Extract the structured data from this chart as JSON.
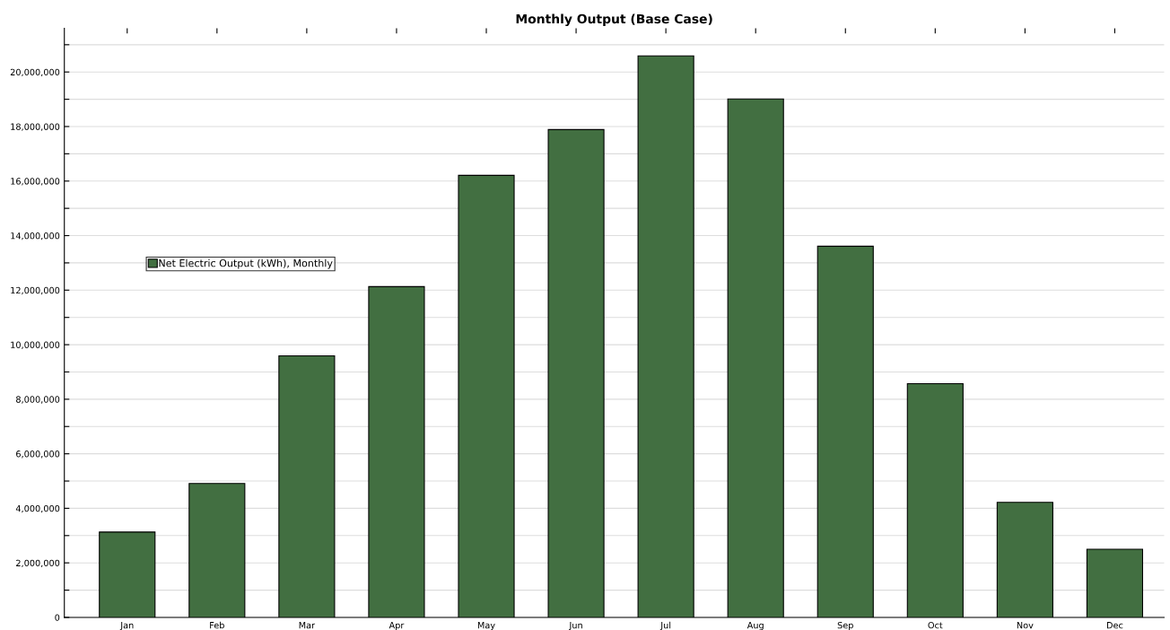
{
  "chart_data": {
    "type": "bar",
    "title": "Monthly Output (Base Case)",
    "categories": [
      "Jan",
      "Feb",
      "Mar",
      "Apr",
      "May",
      "Jun",
      "Jul",
      "Aug",
      "Sep",
      "Oct",
      "Nov",
      "Dec"
    ],
    "series": [
      {
        "name": "Net Electric Output (kWh), Monthly",
        "color": "#426f41",
        "values": [
          3130000,
          4910000,
          9590000,
          12130000,
          16210000,
          17890000,
          20590000,
          19010000,
          13610000,
          8570000,
          4220000,
          2500000
        ]
      }
    ],
    "ylim": [
      0,
      21600000
    ],
    "yticks": [
      0,
      {
        "value": 1000000,
        "label": null
      },
      {
        "value": 2000000,
        "label": "2,000,000"
      },
      {
        "value": 3000000,
        "label": null
      },
      {
        "value": 4000000,
        "label": "4,000,000"
      },
      {
        "value": 5000000,
        "label": null
      },
      {
        "value": 6000000,
        "label": "6,000,000"
      },
      {
        "value": 7000000,
        "label": null
      },
      {
        "value": 8000000,
        "label": "8,000,000"
      },
      {
        "value": 9000000,
        "label": null
      },
      {
        "value": 10000000,
        "label": "10,000,000"
      },
      {
        "value": 11000000,
        "label": null
      },
      {
        "value": 12000000,
        "label": "12,000,000"
      },
      {
        "value": 13000000,
        "label": null
      },
      {
        "value": 14000000,
        "label": "14,000,000"
      },
      {
        "value": 15000000,
        "label": null
      },
      {
        "value": 16000000,
        "label": "16,000,000"
      },
      {
        "value": 17000000,
        "label": null
      },
      {
        "value": 18000000,
        "label": "18,000,000"
      },
      {
        "value": 19000000,
        "label": null
      },
      {
        "value": 20000000,
        "label": "20,000,000"
      },
      {
        "value": 21000000,
        "label": null
      }
    ],
    "grid": "y",
    "legend": "left"
  }
}
